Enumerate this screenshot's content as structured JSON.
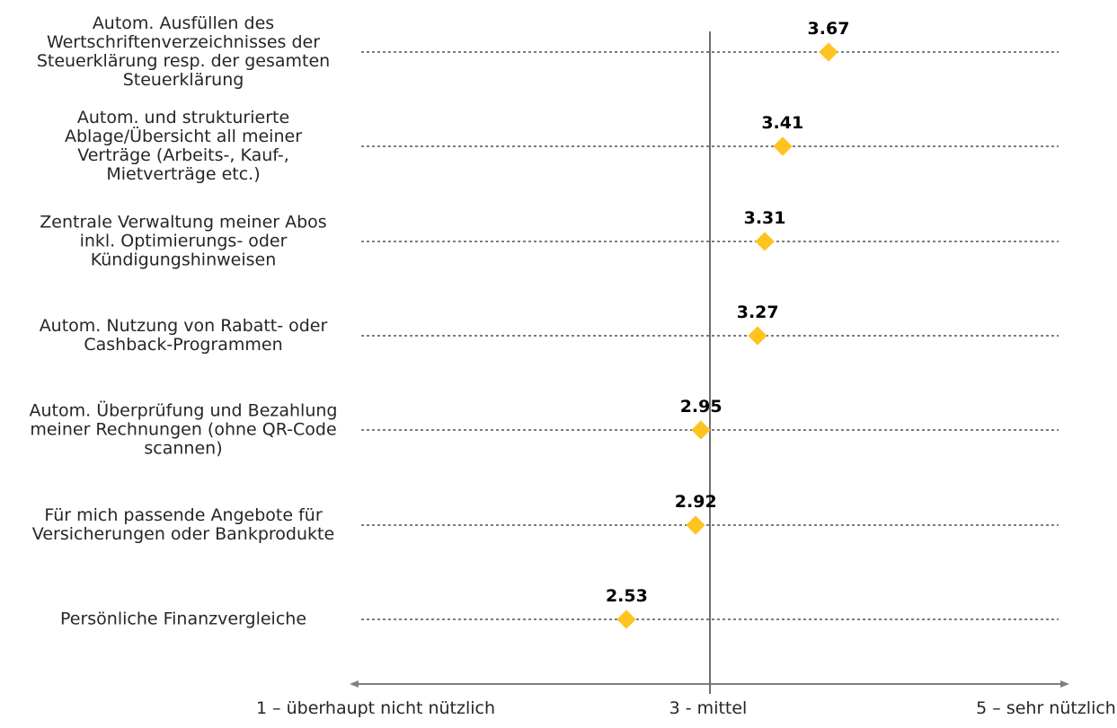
{
  "chart_data": {
    "type": "scatter",
    "title": "",
    "marker_shape": "diamond",
    "marker_color": "#FFC320",
    "line_style": "dotted-leader",
    "reference_line_value": 3,
    "axis": {
      "min": 1,
      "max": 5,
      "ticks": [
        {
          "value": 1,
          "label": "1 – überhaupt nicht nützlich"
        },
        {
          "value": 3,
          "label": "3 - mittel"
        },
        {
          "value": 5,
          "label": "5 – sehr nützlich"
        }
      ]
    },
    "items": [
      {
        "label": "Autom. Ausfüllen des Wertschriftenverzeichnisses der Steuerklärung resp. der gesamten Steuerklärung",
        "label_lines": [
          "Autom. Ausfüllen des",
          "Wertschriftenverzeichnisses der",
          "Steuerklärung resp. der gesamten",
          "Steuerklärung"
        ],
        "value": 3.67,
        "value_label": "3.67"
      },
      {
        "label": "Autom. und strukturierte Ablage/Übersicht all meiner Verträge (Arbeits-, Kauf-, Mietverträge etc.)",
        "label_lines": [
          "Autom. und strukturierte",
          "Ablage/Übersicht all meiner",
          "Verträge (Arbeits-, Kauf-,",
          "Mietverträge etc.)"
        ],
        "value": 3.41,
        "value_label": "3.41"
      },
      {
        "label": "Zentrale Verwaltung meiner Abos inkl. Optimierungs- oder Kündigungshinweisen",
        "label_lines": [
          "Zentrale Verwaltung meiner Abos",
          "inkl. Optimierungs- oder",
          "Kündigungshinweisen"
        ],
        "value": 3.31,
        "value_label": "3.31"
      },
      {
        "label": "Autom. Nutzung von Rabatt- oder Cashback-Programmen",
        "label_lines": [
          "Autom. Nutzung von Rabatt- oder",
          "Cashback-Programmen"
        ],
        "value": 3.27,
        "value_label": "3.27"
      },
      {
        "label": "Autom. Überprüfung und Bezahlung meiner Rechnungen (ohne QR-Code scannen)",
        "label_lines": [
          "Autom. Überprüfung und Bezahlung",
          "meiner Rechnungen (ohne QR-Code",
          "scannen)"
        ],
        "value": 2.95,
        "value_label": "2.95"
      },
      {
        "label": "Für mich passende Angebote für Versicherungen oder Bankprodukte",
        "label_lines": [
          "Für mich passende Angebote für",
          "Versicherungen oder Bankprodukte"
        ],
        "value": 2.92,
        "value_label": "2.92"
      },
      {
        "label": "Persönliche Finanzvergleiche",
        "label_lines": [
          "Persönliche Finanzvergleiche"
        ],
        "value": 2.53,
        "value_label": "2.53"
      }
    ]
  }
}
